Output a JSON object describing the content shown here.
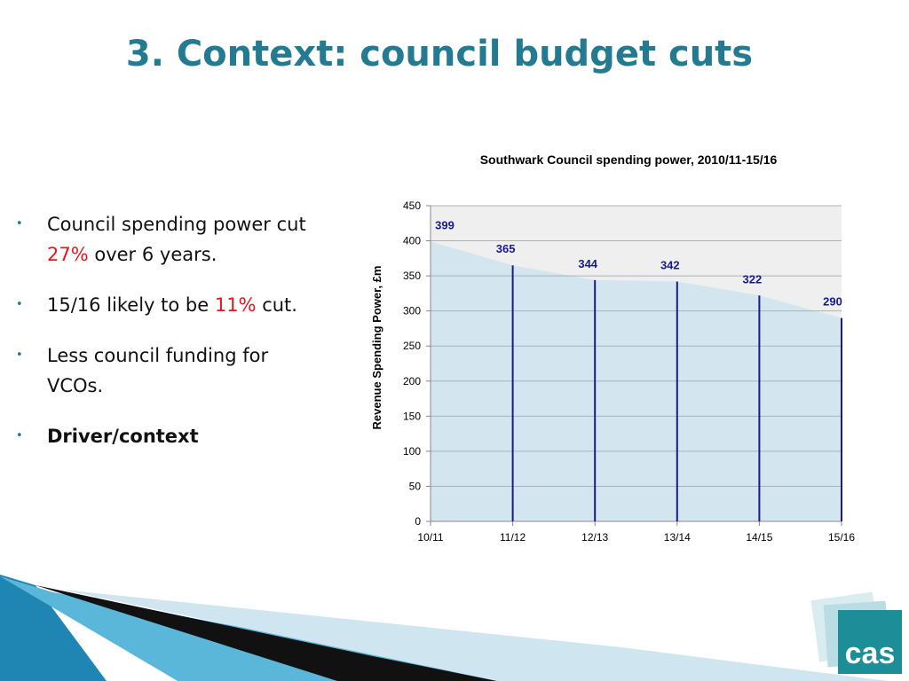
{
  "title": "3. Context: council budget cuts",
  "bullets": [
    {
      "parts": [
        "Council spending power cut ",
        {
          "text": "27%",
          "color": "#e8141b"
        },
        " over 6 years."
      ]
    },
    {
      "parts": [
        "15/16 likely to be ",
        {
          "text": "11%",
          "color": "#e8141b"
        },
        " cut."
      ]
    },
    {
      "parts": [
        "Less council funding for VCOs."
      ]
    },
    {
      "parts": [
        {
          "text": "Driver/context",
          "bold": true
        }
      ]
    }
  ],
  "logo": "cas",
  "chart_data": {
    "type": "area",
    "title": "Southwark Council spending power, 2010/11-15/16",
    "ylabel": "Revenue Spending Power, £m",
    "categories": [
      "10/11",
      "11/12",
      "12/13",
      "13/14",
      "14/15",
      "15/16"
    ],
    "values": [
      399,
      365,
      344,
      342,
      322,
      290
    ],
    "color": "#d3e5ee",
    "line_color": "#1a1a8c",
    "label_color": "#1a1a8c",
    "ylim": [
      0,
      450
    ],
    "yticks": [
      0,
      50,
      100,
      150,
      200,
      250,
      300,
      350,
      400,
      450
    ],
    "grid": true
  }
}
